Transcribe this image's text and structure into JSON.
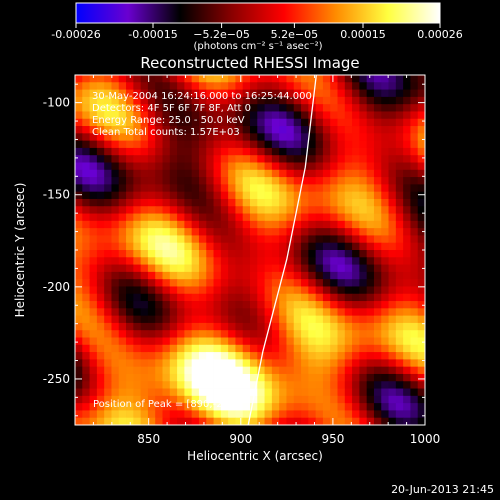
{
  "footer": {
    "timestamp": "20-Jun-2013 21:45"
  },
  "colorbar": {
    "ticks": [
      "-0.00026",
      "-0.00015",
      "−5.2e−05",
      "5.2e−05",
      "0.00015",
      "0.00026"
    ],
    "tick_values": [
      -0.00026,
      -0.00015,
      -5.2e-05,
      5.2e-05,
      0.00015,
      0.00026
    ],
    "range": [
      -0.00026,
      0.00026
    ],
    "units": "(photons cm⁻² s⁻¹ asec⁻²)",
    "colors": [
      "#0000ff",
      "#6a00d0",
      "#000000",
      "#8a0000",
      "#ff0000",
      "#ff8c00",
      "#ffff40",
      "#ffffff"
    ]
  },
  "chart_data": {
    "type": "heatmap",
    "title": "Reconstructed RHESSI Image",
    "xlabel": "Heliocentric X (arcsec)",
    "ylabel": "Heliocentric Y (arcsec)",
    "xlim": [
      810,
      1000
    ],
    "ylim": [
      -275,
      -85
    ],
    "xticks": [
      "850",
      "900",
      "950",
      "1000"
    ],
    "xtick_values": [
      850,
      900,
      950,
      1000
    ],
    "yticks": [
      "-100",
      "-150",
      "-200",
      "-250"
    ],
    "ytick_values": [
      -100,
      -150,
      -200,
      -250
    ],
    "info_lines": [
      "30-May-2004 16:24:16.000 to 16:25:44.000",
      "Detectors: 4F 5F 6F 7F 8F, Att 0",
      "Energy Range: 25.0 - 50.0 keV",
      "Clean    Total counts: 1.57E+03"
    ],
    "peak_label": "Position of Peak = [890,-252]",
    "peak": [
      890,
      -252
    ],
    "limb": {
      "color": "#ffffff",
      "points": [
        [
          941,
          -85
        ],
        [
          935,
          -135
        ],
        [
          925,
          -185
        ],
        [
          912,
          -235
        ],
        [
          904,
          -275
        ]
      ]
    },
    "grid_cells": [
      48,
      48
    ]
  }
}
